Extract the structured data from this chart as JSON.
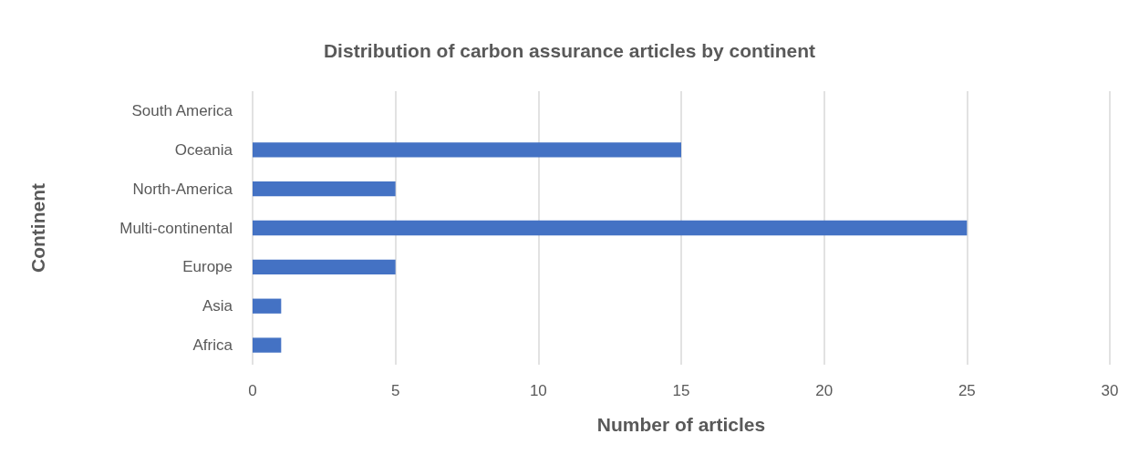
{
  "chart_data": {
    "type": "bar",
    "orientation": "horizontal",
    "title": "Distribution of carbon assurance articles by continent",
    "xlabel": "Number of articles",
    "ylabel": "Continent",
    "categories": [
      "South America",
      "Oceania",
      "North-America",
      "Multi-continental",
      "Europe",
      "Asia",
      "Africa"
    ],
    "values": [
      0,
      15,
      5,
      25,
      5,
      1,
      1
    ],
    "color": "#4472c4",
    "xlim": [
      0,
      30
    ],
    "xticks": [
      0,
      5,
      10,
      15,
      20,
      25,
      30
    ],
    "grid": "x"
  }
}
